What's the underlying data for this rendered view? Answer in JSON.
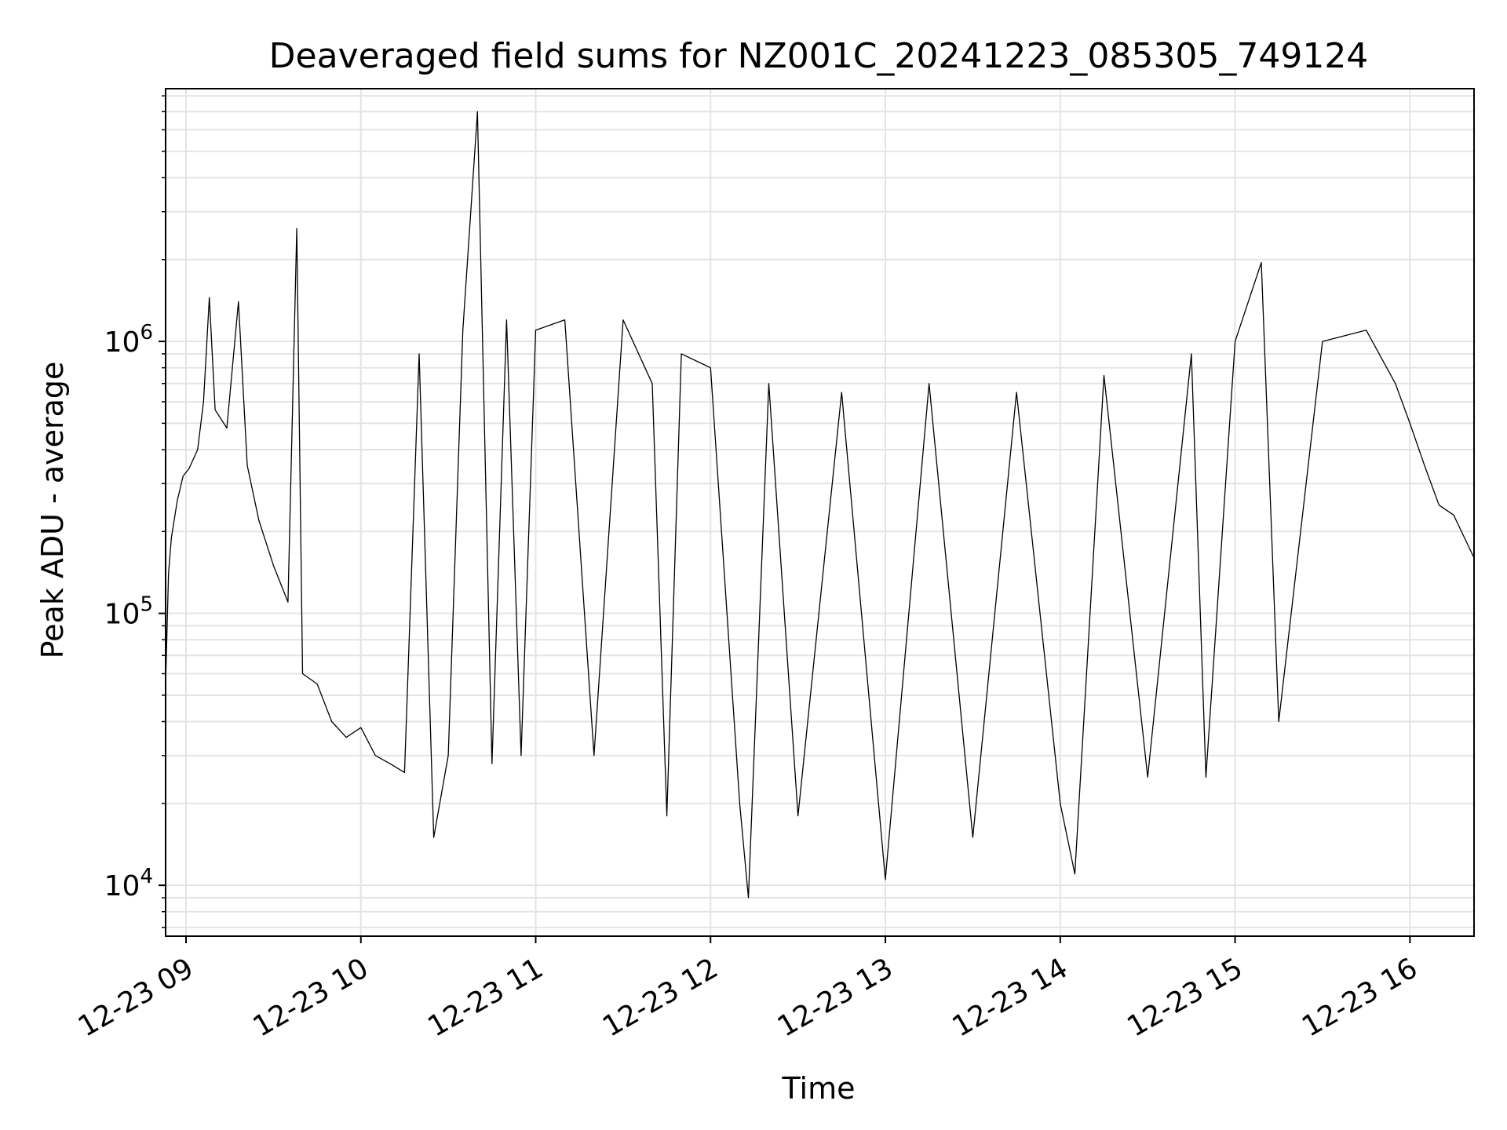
{
  "chart_data": {
    "type": "line",
    "title": "Deaveraged field sums for NZ001C_20241223_085305_749124",
    "xlabel": "Time",
    "ylabel": "Peak ADU - average",
    "xscale": "time",
    "yscale": "log",
    "xlim": [
      "2024-12-23 08:53",
      "2024-12-23 16:22"
    ],
    "ylim": [
      6500,
      8500000
    ],
    "grid": true,
    "grid_minor": true,
    "line_color": "#000000",
    "x_tick_labels": [
      {
        "t": "2024-12-23 09:00",
        "label": "12-23 09"
      },
      {
        "t": "2024-12-23 10:00",
        "label": "12-23 10"
      },
      {
        "t": "2024-12-23 11:00",
        "label": "12-23 11"
      },
      {
        "t": "2024-12-23 12:00",
        "label": "12-23 12"
      },
      {
        "t": "2024-12-23 13:00",
        "label": "12-23 13"
      },
      {
        "t": "2024-12-23 14:00",
        "label": "12-23 14"
      },
      {
        "t": "2024-12-23 15:00",
        "label": "12-23 15"
      },
      {
        "t": "2024-12-23 16:00",
        "label": "12-23 16"
      }
    ],
    "y_tick_labels": [
      {
        "value": 10000,
        "base": "10",
        "exp": "4"
      },
      {
        "value": 100000,
        "base": "10",
        "exp": "5"
      },
      {
        "value": 1000000,
        "base": "10",
        "exp": "6"
      }
    ],
    "series": [
      {
        "points": [
          [
            "2024-12-23 08:53",
            55000
          ],
          [
            "2024-12-23 08:54",
            140000
          ],
          [
            "2024-12-23 08:55",
            190000
          ],
          [
            "2024-12-23 08:57",
            260000
          ],
          [
            "2024-12-23 08:59",
            320000
          ],
          [
            "2024-12-23 09:01",
            340000
          ],
          [
            "2024-12-23 09:04",
            400000
          ],
          [
            "2024-12-23 09:06",
            600000
          ],
          [
            "2024-12-23 09:08",
            1450000
          ],
          [
            "2024-12-23 09:10",
            560000
          ],
          [
            "2024-12-23 09:14",
            480000
          ],
          [
            "2024-12-23 09:18",
            1400000
          ],
          [
            "2024-12-23 09:21",
            350000
          ],
          [
            "2024-12-23 09:25",
            220000
          ],
          [
            "2024-12-23 09:30",
            150000
          ],
          [
            "2024-12-23 09:35",
            110000
          ],
          [
            "2024-12-23 09:38",
            2600000
          ],
          [
            "2024-12-23 09:40",
            60000
          ],
          [
            "2024-12-23 09:45",
            55000
          ],
          [
            "2024-12-23 09:50",
            40000
          ],
          [
            "2024-12-23 09:55",
            35000
          ],
          [
            "2024-12-23 10:00",
            38000
          ],
          [
            "2024-12-23 10:05",
            30000
          ],
          [
            "2024-12-23 10:10",
            28000
          ],
          [
            "2024-12-23 10:15",
            26000
          ],
          [
            "2024-12-23 10:20",
            900000
          ],
          [
            "2024-12-23 10:25",
            15000
          ],
          [
            "2024-12-23 10:30",
            30000
          ],
          [
            "2024-12-23 10:35",
            1100000
          ],
          [
            "2024-12-23 10:40",
            7000000
          ],
          [
            "2024-12-23 10:45",
            28000
          ],
          [
            "2024-12-23 10:50",
            1200000
          ],
          [
            "2024-12-23 10:55",
            30000
          ],
          [
            "2024-12-23 11:00",
            1100000
          ],
          [
            "2024-12-23 11:10",
            1200000
          ],
          [
            "2024-12-23 11:20",
            30000
          ],
          [
            "2024-12-23 11:30",
            1200000
          ],
          [
            "2024-12-23 11:40",
            700000
          ],
          [
            "2024-12-23 11:45",
            18000
          ],
          [
            "2024-12-23 11:50",
            900000
          ],
          [
            "2024-12-23 12:00",
            800000
          ],
          [
            "2024-12-23 12:10",
            20000
          ],
          [
            "2024-12-23 12:13",
            9000
          ],
          [
            "2024-12-23 12:20",
            700000
          ],
          [
            "2024-12-23 12:30",
            18000
          ],
          [
            "2024-12-23 12:45",
            650000
          ],
          [
            "2024-12-23 13:00",
            10500
          ],
          [
            "2024-12-23 13:15",
            700000
          ],
          [
            "2024-12-23 13:30",
            15000
          ],
          [
            "2024-12-23 13:45",
            650000
          ],
          [
            "2024-12-23 14:00",
            20000
          ],
          [
            "2024-12-23 14:05",
            11000
          ],
          [
            "2024-12-23 14:15",
            750000
          ],
          [
            "2024-12-23 14:30",
            25000
          ],
          [
            "2024-12-23 14:45",
            900000
          ],
          [
            "2024-12-23 14:50",
            25000
          ],
          [
            "2024-12-23 15:00",
            1000000
          ],
          [
            "2024-12-23 15:09",
            1950000
          ],
          [
            "2024-12-23 15:15",
            40000
          ],
          [
            "2024-12-23 15:30",
            1000000
          ],
          [
            "2024-12-23 15:45",
            1100000
          ],
          [
            "2024-12-23 15:55",
            700000
          ],
          [
            "2024-12-23 16:00",
            500000
          ],
          [
            "2024-12-23 16:05",
            350000
          ],
          [
            "2024-12-23 16:10",
            250000
          ],
          [
            "2024-12-23 16:15",
            230000
          ],
          [
            "2024-12-23 16:22",
            160000
          ]
        ]
      }
    ]
  }
}
